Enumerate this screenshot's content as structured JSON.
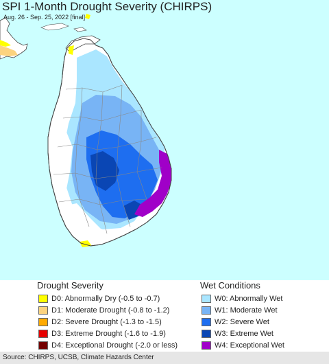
{
  "title": "SPI 1-Month Drought Severity (CHIRPS)",
  "subtitle": "Aug. 26 - Sep. 25, 2022 [final]",
  "colors": {
    "ocean": "#ccffff",
    "land_normal": "#ffffff",
    "boundary": "#888888",
    "coastline": "#444444"
  },
  "legend": {
    "drought": {
      "title": "Drought Severity",
      "items": [
        {
          "label": "D0: Abnormally Dry (-0.5 to -0.7)",
          "color": "#ffff00"
        },
        {
          "label": "D1: Moderate Drought (-0.8 to -1.2)",
          "color": "#fcd37f"
        },
        {
          "label": "D2: Severe Drought (-1.3 to -1.5)",
          "color": "#ffaa00"
        },
        {
          "label": "D3: Extreme Drought (-1.6 to -1.9)",
          "color": "#e60000"
        },
        {
          "label": "D4: Exceptional Drought (-2.0 or less)",
          "color": "#730000"
        }
      ]
    },
    "wet": {
      "title": "Wet Conditions",
      "items": [
        {
          "label": "W0: Abnormally Wet",
          "color": "#aae6ff"
        },
        {
          "label": "W1: Moderate Wet",
          "color": "#78b4f5"
        },
        {
          "label": "W2: Severe Wet",
          "color": "#1e6ef0"
        },
        {
          "label": "W3: Extreme Wet",
          "color": "#0a46b4"
        },
        {
          "label": "W4: Exceptional Wet",
          "color": "#a000c8"
        }
      ]
    }
  },
  "source": "Source: CHIRPS, UCSB, Climate Hazards Center"
}
